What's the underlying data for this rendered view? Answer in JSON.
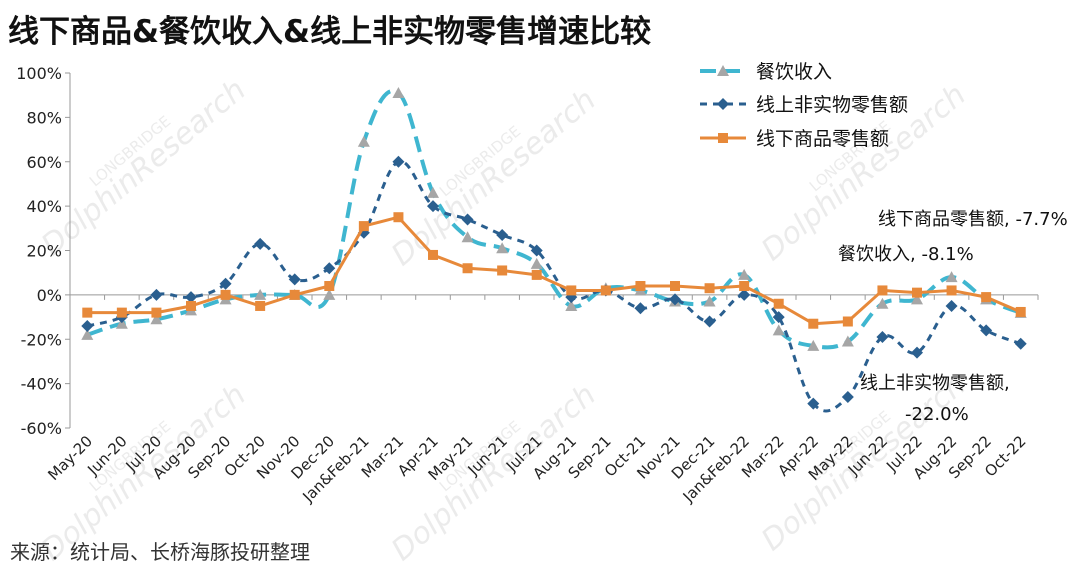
{
  "title": "线下商品&餐饮收入&线上非实物零售增速比较",
  "source": "来源：统计局、长桥海豚投研整理",
  "watermark": {
    "brand": "LONGBRIDGE",
    "research": "DolphinResearch"
  },
  "chart_data": {
    "type": "line",
    "categories": [
      "May-20",
      "Jun-20",
      "Jul-20",
      "Aug-20",
      "Sep-20",
      "Oct-20",
      "Nov-20",
      "Dec-20",
      "Jan&Feb-21",
      "Mar-21",
      "Apr-21",
      "May-21",
      "Jun-21",
      "Jul-21",
      "Aug-21",
      "Sep-21",
      "Oct-21",
      "Nov-21",
      "Dec-21",
      "Jan&Feb-22",
      "Mar-22",
      "Apr-22",
      "May-22",
      "Jun-22",
      "Jul-22",
      "Aug-22",
      "Sep-22",
      "Oct-22"
    ],
    "y_ticks": [
      "100%",
      "80%",
      "60%",
      "40%",
      "20%",
      "0%",
      "-20%",
      "-40%",
      "-60%"
    ],
    "ylim": [
      -60,
      100
    ],
    "series": [
      {
        "name": "餐饮收入",
        "color": "#3fb6d0",
        "marker": "triangle",
        "dash": "dash-long",
        "values": [
          -18,
          -13,
          -11,
          -7,
          -2,
          0,
          0,
          0,
          69,
          91,
          46,
          26,
          21,
          14,
          -5,
          3,
          2,
          -3,
          -3,
          9,
          -16,
          -23,
          -21,
          -4,
          -2,
          8,
          -2,
          -8.1
        ]
      },
      {
        "name": "线上非实物零售额",
        "color": "#2a5f8f",
        "marker": "diamond",
        "dash": "dash-short",
        "values": [
          -14,
          -10,
          0,
          -1,
          5,
          23,
          7,
          12,
          28,
          60,
          40,
          34,
          27,
          20,
          -1,
          2,
          -6,
          -2,
          -12,
          0,
          -10,
          -49,
          -46,
          -19,
          -26,
          -5,
          -16,
          -22.0
        ]
      },
      {
        "name": "线下商品零售额",
        "color": "#e7893a",
        "marker": "square",
        "dash": "solid",
        "values": [
          -8,
          -8,
          -8,
          -5,
          0,
          -5,
          0,
          4,
          31,
          35,
          18,
          12,
          11,
          9,
          2,
          2,
          4,
          4,
          3,
          4,
          -4,
          -13,
          -12,
          2,
          1,
          2,
          -1,
          -7.7
        ]
      }
    ],
    "annotations": [
      {
        "text": "线下商品零售额, -7.7%"
      },
      {
        "text": "餐饮收入, -8.1%"
      },
      {
        "text": "线上非实物零售额,"
      },
      {
        "text": "-22.0%"
      }
    ],
    "legend_position": "top-right",
    "grid": false
  }
}
